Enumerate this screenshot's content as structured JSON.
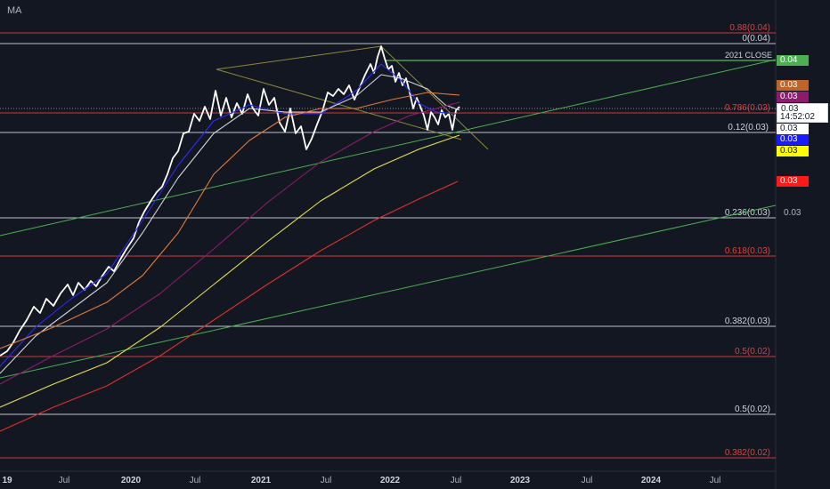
{
  "indicator_label": "MA",
  "chart_data": {
    "type": "line",
    "x_ticks": [
      "19",
      "Jul",
      "2020",
      "Jul",
      "2021",
      "Jul",
      "2022",
      "Jul",
      "2023",
      "Jul",
      "2024",
      "Jul"
    ],
    "price_axis_labels": [
      "0.03"
    ],
    "current_price": "0.03",
    "countdown": "14:52:02",
    "horizontal_levels": [
      {
        "label": "0.88(0.04)",
        "color": "#e0403c"
      },
      {
        "label": "0(0.04)",
        "color": "#d1d4dc"
      },
      {
        "label": "2021 CLOSE",
        "color": "#4caf50"
      },
      {
        "label": "0.786(0.03)",
        "color": "#e0403c"
      },
      {
        "label": "0.12(0.03)",
        "color": "#d1d4dc"
      },
      {
        "label": "0.236(0.03)",
        "color": "#d1d4dc"
      },
      {
        "label": "0.618(0.03)",
        "color": "#e0403c"
      },
      {
        "label": "0.382(0.03)",
        "color": "#d1d4dc"
      },
      {
        "label": "0.5(0.02)",
        "color": "#e0403c"
      },
      {
        "label": "0.5(0.02)",
        "color": "#d1d4dc"
      },
      {
        "label": "0.382(0.02)",
        "color": "#e0403c"
      }
    ],
    "price_tags": [
      {
        "value": "0.04",
        "bg": "#4caf50",
        "fg": "#ffffff"
      },
      {
        "value": "0.03",
        "bg": "#c0652a",
        "fg": "#ffffff"
      },
      {
        "value": "0.03",
        "bg": "#8e1a6e",
        "fg": "#ffffff"
      },
      {
        "value": "0.03",
        "bg": "#ffffff",
        "fg": "#131722"
      },
      {
        "value": "0.03",
        "bg": "#ffffff",
        "fg": "#131722"
      },
      {
        "value": "0.03",
        "bg": "#1a1aff",
        "fg": "#ffffff"
      },
      {
        "value": "0.03",
        "bg": "#ffff00",
        "fg": "#131722"
      },
      {
        "value": "0.03",
        "bg": "#ff1a1a",
        "fg": "#ffffff"
      }
    ],
    "series": [
      {
        "color": "#ffffff"
      },
      {
        "color": "#2a2aff"
      },
      {
        "color": "#d1d4dc"
      },
      {
        "color": "#e07b39"
      },
      {
        "color": "#8e1a6e"
      },
      {
        "color": "#e6e04a"
      },
      {
        "color": "#e0302c"
      }
    ],
    "colors": {
      "background": "#131722",
      "axis_text": "#b2b5be",
      "trendline": "#4caf50",
      "triangle": "#8a8a3a"
    }
  }
}
